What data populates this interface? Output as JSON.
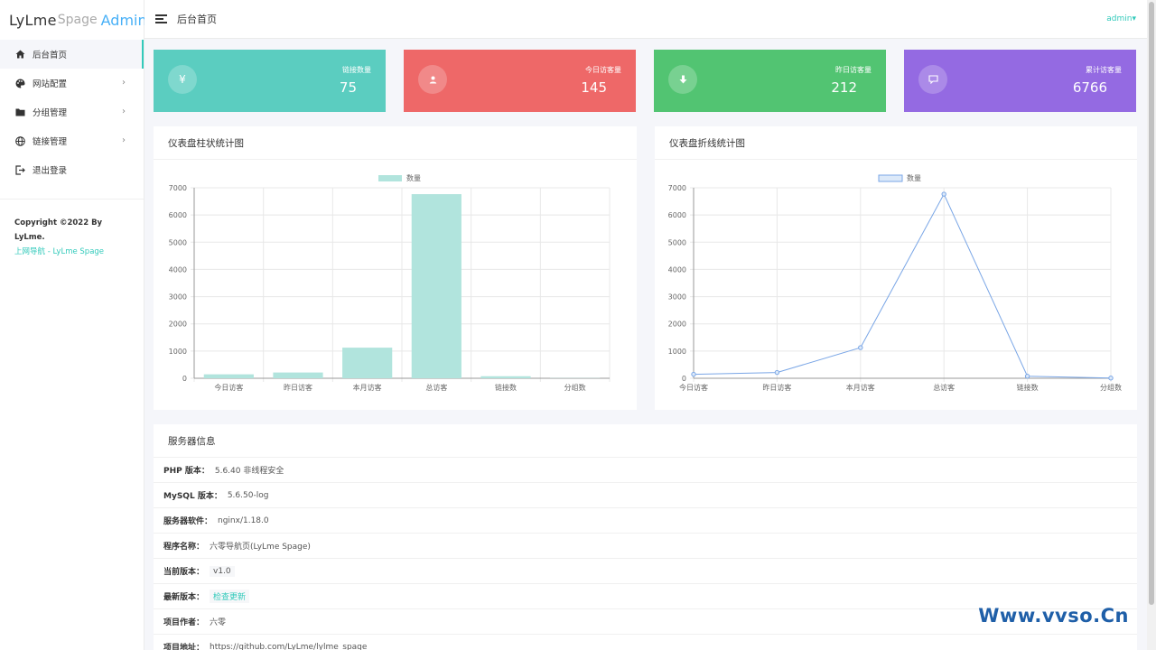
{
  "logo": {
    "part1": "LyLme",
    "part2": "Spage",
    "part3": "Admin"
  },
  "sidebar": {
    "items": [
      {
        "label": "后台首页",
        "icon": "home-icon"
      },
      {
        "label": "网站配置",
        "icon": "palette-icon"
      },
      {
        "label": "分组管理",
        "icon": "folder-icon"
      },
      {
        "label": "链接管理",
        "icon": "globe-icon"
      },
      {
        "label": "退出登录",
        "icon": "logout-icon"
      }
    ],
    "copyright": "Copyright ©2022 By LyLme.",
    "footer_link": "上网导航 - LyLme Spage"
  },
  "header": {
    "title": "后台首页",
    "user": "admin"
  },
  "stats": [
    {
      "label": "链接数量",
      "value": "75",
      "icon": "yen-icon",
      "color": "#5bcdc0"
    },
    {
      "label": "今日访客量",
      "value": "145",
      "icon": "user-icon",
      "color": "#ee6868"
    },
    {
      "label": "昨日访客量",
      "value": "212",
      "icon": "download-icon",
      "color": "#52c472"
    },
    {
      "label": "累计访客量",
      "value": "6766",
      "icon": "comment-icon",
      "color": "#946ae2"
    }
  ],
  "bar_panel": {
    "title": "仪表盘柱状统计图"
  },
  "line_panel": {
    "title": "仪表盘折线统计图"
  },
  "chart_data": [
    {
      "type": "bar",
      "categories": [
        "今日访客",
        "昨日访客",
        "本月访客",
        "总访客",
        "链接数",
        "分组数"
      ],
      "series": [
        {
          "name": "数量",
          "values": [
            145,
            212,
            1125,
            6766,
            75,
            8
          ]
        }
      ],
      "ylim": [
        0,
        7000
      ],
      "yticks": [
        0,
        1000,
        2000,
        3000,
        4000,
        5000,
        6000,
        7000
      ],
      "legend": "top-center",
      "grid": true,
      "color": "#b1e4dd"
    },
    {
      "type": "line",
      "categories": [
        "今日访客",
        "昨日访客",
        "本月访客",
        "总访客",
        "链接数",
        "分组数"
      ],
      "series": [
        {
          "name": "数量",
          "values": [
            145,
            212,
            1125,
            6766,
            75,
            8
          ]
        }
      ],
      "ylim": [
        0,
        7000
      ],
      "yticks": [
        0,
        1000,
        2000,
        3000,
        4000,
        5000,
        6000,
        7000
      ],
      "legend": "top-center",
      "grid": true,
      "color": "#7aa6e6"
    }
  ],
  "server": {
    "title": "服务器信息",
    "rows": [
      {
        "key": "PHP 版本：",
        "value": "5.6.40 非线程安全"
      },
      {
        "key": "MySQL 版本：",
        "value": "5.6.50-log"
      },
      {
        "key": "服务器软件：",
        "value": "nginx/1.18.0"
      },
      {
        "key": "程序名称：",
        "value": "六零导航页(LyLme Spage)"
      },
      {
        "key": "当前版本：",
        "value": "v1.0"
      },
      {
        "key": "最新版本：",
        "value": "检查更新"
      },
      {
        "key": "项目作者：",
        "value": "六零"
      },
      {
        "key": "项目地址：",
        "value": "https://github.com/LyLme/lylme_spage"
      }
    ]
  },
  "watermark": "Www.vvso.Cn"
}
